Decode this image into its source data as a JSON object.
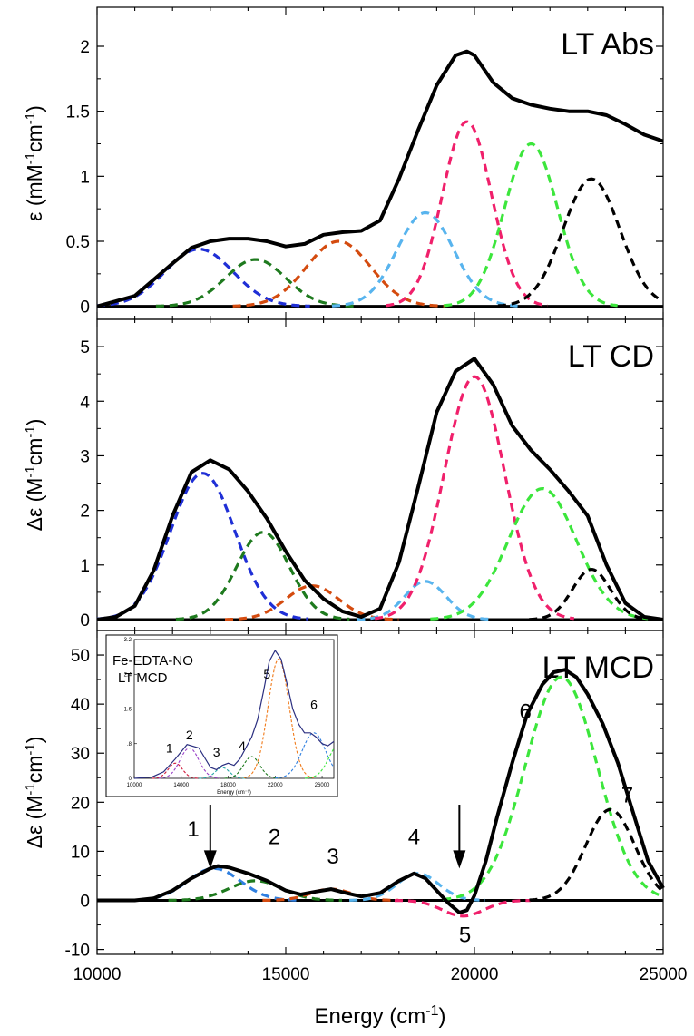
{
  "chart_data": {
    "type": "line",
    "xlabel": "Energy (cm",
    "xlabel_sup": "-1",
    "xlabel_end": ")",
    "xlim": [
      10000,
      25000
    ],
    "xticks": [
      10000,
      15000,
      20000,
      25000
    ],
    "xtick_labels": [
      "10000",
      "15000",
      "20000",
      "25000"
    ],
    "panels": [
      {
        "title": "LT Abs",
        "ylabel": "ε (mM",
        "ylabel_sup1": "-1",
        "ylabel_mid": "cm",
        "ylabel_sup2": "-1",
        "ylabel_end": ")",
        "ylim": [
          -0.1,
          2.3
        ],
        "yticks": [
          0,
          0.5,
          1,
          1.5,
          2
        ],
        "ytick_labels": [
          "0",
          "0.5",
          "1",
          "1.5",
          "2"
        ],
        "total": {
          "x": [
            10000,
            11000,
            12000,
            12500,
            13000,
            13500,
            14000,
            14500,
            15000,
            15500,
            16000,
            16500,
            17000,
            17500,
            18000,
            18500,
            19000,
            19500,
            19800,
            20000,
            20500,
            21000,
            21500,
            22000,
            22500,
            23000,
            23500,
            24000,
            24500,
            25000
          ],
          "y": [
            0,
            0.08,
            0.33,
            0.45,
            0.5,
            0.52,
            0.52,
            0.5,
            0.46,
            0.48,
            0.55,
            0.57,
            0.58,
            0.66,
            0.98,
            1.35,
            1.7,
            1.93,
            1.96,
            1.93,
            1.72,
            1.6,
            1.55,
            1.52,
            1.5,
            1.5,
            1.47,
            1.4,
            1.32,
            1.27
          ]
        },
        "bands": [
          {
            "color": "#1f2fd6",
            "center": 12700,
            "amp": 0.44,
            "sigma": 900
          },
          {
            "color": "#1e7a1e",
            "center": 14200,
            "amp": 0.36,
            "sigma": 800
          },
          {
            "color": "#d44b0f",
            "center": 16400,
            "amp": 0.5,
            "sigma": 850
          },
          {
            "color": "#58b4ee",
            "center": 18700,
            "amp": 0.72,
            "sigma": 750
          },
          {
            "color": "#f0206b",
            "center": 19800,
            "amp": 1.42,
            "sigma": 650
          },
          {
            "color": "#3ce63c",
            "center": 21500,
            "amp": 1.25,
            "sigma": 700
          },
          {
            "color": "#000000",
            "center": 23100,
            "amp": 0.98,
            "sigma": 750
          }
        ]
      },
      {
        "title": "LT CD",
        "ylabel": "Δε (M",
        "ylabel_sup1": "-1",
        "ylabel_mid": "cm",
        "ylabel_sup2": "-1",
        "ylabel_end": ")",
        "ylim": [
          -0.2,
          5.5
        ],
        "yticks": [
          0,
          1,
          2,
          3,
          4,
          5
        ],
        "ytick_labels": [
          "0",
          "1",
          "2",
          "3",
          "4",
          "5"
        ],
        "total": {
          "x": [
            10000,
            10500,
            11000,
            11500,
            12000,
            12500,
            13000,
            13500,
            14000,
            14500,
            15000,
            15500,
            16000,
            16500,
            17000,
            17500,
            18000,
            18500,
            19000,
            19500,
            20000,
            20500,
            21000,
            21500,
            22000,
            22500,
            23000,
            23500,
            24000,
            24500,
            25000
          ],
          "y": [
            0,
            0.05,
            0.25,
            0.9,
            1.9,
            2.7,
            2.92,
            2.75,
            2.35,
            1.85,
            1.25,
            0.72,
            0.38,
            0.15,
            0.05,
            0.2,
            1.05,
            2.4,
            3.8,
            4.55,
            4.78,
            4.3,
            3.55,
            3.1,
            2.75,
            2.35,
            1.9,
            1.0,
            0.3,
            0.05,
            0
          ]
        },
        "bands": [
          {
            "color": "#1f2fd6",
            "center": 12800,
            "amp": 2.68,
            "sigma": 850
          },
          {
            "color": "#1e7a1e",
            "center": 14400,
            "amp": 1.6,
            "sigma": 700
          },
          {
            "color": "#d44b0f",
            "center": 15700,
            "amp": 0.62,
            "sigma": 700
          },
          {
            "color": "#58b4ee",
            "center": 18700,
            "amp": 0.7,
            "sigma": 550
          },
          {
            "color": "#f0206b",
            "center": 20000,
            "amp": 4.45,
            "sigma": 800
          },
          {
            "color": "#3ce63c",
            "center": 21800,
            "amp": 2.4,
            "sigma": 900
          },
          {
            "color": "#000000",
            "center": 23100,
            "amp": 0.92,
            "sigma": 500
          }
        ]
      },
      {
        "title": "LT MCD",
        "ylabel": "Δε (M",
        "ylabel_sup1": "-1",
        "ylabel_mid": "cm",
        "ylabel_sup2": "-1",
        "ylabel_end": ")",
        "ylim": [
          -11,
          55
        ],
        "yticks": [
          -10,
          0,
          10,
          20,
          30,
          40,
          50
        ],
        "ytick_labels": [
          "-10",
          "0",
          "10",
          "20",
          "30",
          "40",
          "50"
        ],
        "total": {
          "x": [
            10000,
            11000,
            11500,
            12000,
            12500,
            13000,
            13200,
            13500,
            14000,
            14500,
            15000,
            15400,
            15800,
            16200,
            16600,
            17000,
            17500,
            18000,
            18400,
            18700,
            19000,
            19300,
            19600,
            19800,
            20000,
            20300,
            20600,
            21000,
            21400,
            21800,
            22100,
            22400,
            22700,
            23000,
            23400,
            23800,
            24200,
            24600,
            25000
          ],
          "y": [
            0,
            0,
            0.4,
            2,
            4.5,
            6.5,
            7,
            6.7,
            5.5,
            4,
            2,
            1.2,
            1.8,
            2.3,
            1.5,
            0.8,
            1.5,
            4,
            5.5,
            4.5,
            2,
            -0.5,
            -2.5,
            -2,
            1,
            8,
            17,
            28,
            38,
            44,
            46.5,
            47,
            45.5,
            42,
            36,
            28,
            18,
            8,
            2.5
          ]
        },
        "bands": [
          {
            "color": "#2f7fe0",
            "center": 13100,
            "amp": 6.5,
            "sigma": 700,
            "label": "1"
          },
          {
            "color": "#1e7a1e",
            "center": 14200,
            "amp": 4,
            "sigma": 700,
            "label": "2"
          },
          {
            "color": "#d44b0f",
            "center": 16200,
            "amp": 2.3,
            "sigma": 550,
            "label": "3"
          },
          {
            "color": "#58b4ee",
            "center": 18500,
            "amp": 5.5,
            "sigma": 550,
            "label": "4"
          },
          {
            "color": "#f0206b",
            "center": 19700,
            "amp": -3.2,
            "sigma": 550,
            "label": "5"
          },
          {
            "color": "#3ce63c",
            "center": 22300,
            "amp": 45.5,
            "sigma": 950,
            "label": "6"
          },
          {
            "color": "#000000",
            "center": 23600,
            "amp": 18.5,
            "sigma": 650,
            "label": "7"
          }
        ],
        "arrows_at_x": [
          13000,
          19600
        ]
      }
    ],
    "inset": {
      "title_line1": "Fe-EDTA-NO",
      "title_line2": "LT MCD",
      "xlabel": "Energy (cm⁻¹)",
      "xlim": [
        10000,
        27000
      ],
      "ylim": [
        0,
        3.2
      ],
      "xticks": [
        10000,
        14000,
        18000,
        22000,
        26000
      ],
      "xtick_labels": [
        "10000",
        "14000",
        "18000",
        "22000",
        "26000"
      ],
      "yticks": [
        0,
        0.8,
        1.6,
        2.4,
        3.2
      ],
      "ytick_labels": [
        "0",
        ".8",
        "1.6",
        "2.4",
        "3.2"
      ],
      "total": {
        "x": [
          10000,
          11500,
          12500,
          13500,
          14500,
          15500,
          16500,
          17000,
          17500,
          18000,
          18500,
          19000,
          19500,
          20000,
          20500,
          21000,
          21500,
          22000,
          22500,
          23000,
          23500,
          24000,
          24500,
          25000,
          25500,
          26000,
          26500,
          27000
        ],
        "y": [
          0,
          0.03,
          0.15,
          0.45,
          0.78,
          0.7,
          0.25,
          0.2,
          0.3,
          0.35,
          0.3,
          0.45,
          0.7,
          0.95,
          1.35,
          2.0,
          2.7,
          2.95,
          2.75,
          2.2,
          1.6,
          1.25,
          1.05,
          1.05,
          0.95,
          0.8,
          0.75,
          0.85
        ]
      },
      "bands": [
        {
          "color": "#d01a3c",
          "center": 13500,
          "amp": 0.35,
          "sigma": 600
        },
        {
          "color": "#9a40c8",
          "center": 14700,
          "amp": 0.7,
          "sigma": 800
        },
        {
          "color": "#2aa8a8",
          "center": 17500,
          "amp": 0.25,
          "sigma": 600
        },
        {
          "color": "#1e7a1e",
          "center": 20000,
          "amp": 0.5,
          "sigma": 700
        },
        {
          "color": "#f07a1a",
          "center": 22300,
          "amp": 2.75,
          "sigma": 900
        },
        {
          "color": "#2f7fe0",
          "center": 25300,
          "amp": 1.05,
          "sigma": 1000
        },
        {
          "color": "#3ce63c",
          "center": 27500,
          "amp": 0.8,
          "sigma": 900
        }
      ],
      "band_labels": [
        {
          "text": "1",
          "x": 13000,
          "y": 0.6
        },
        {
          "text": "2",
          "x": 14700,
          "y": 0.9
        },
        {
          "text": "3",
          "x": 17000,
          "y": 0.5
        },
        {
          "text": "4",
          "x": 19200,
          "y": 0.65
        },
        {
          "text": "5",
          "x": 21300,
          "y": 2.3
        },
        {
          "text": "6",
          "x": 25300,
          "y": 1.6
        }
      ]
    }
  }
}
